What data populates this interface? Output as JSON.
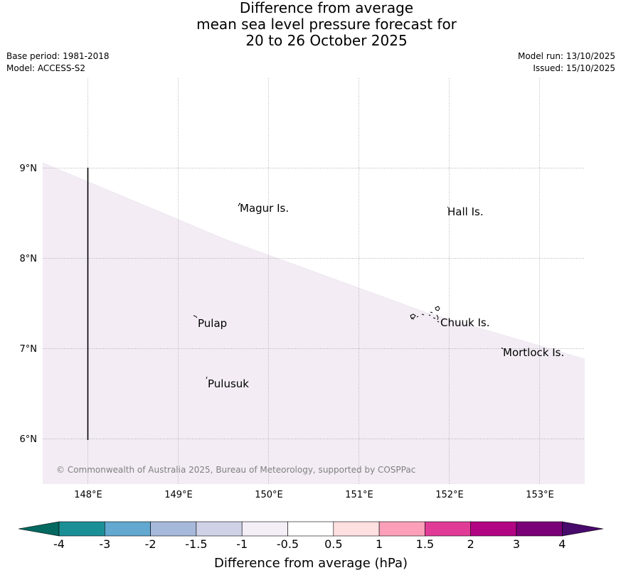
{
  "title": {
    "line1": "Difference from average",
    "line2": "mean sea level pressure forecast for",
    "line3": "20 to 26 October 2025"
  },
  "meta": {
    "base_period": "Base period: 1981-2018",
    "model": "Model: ACCESS-S2",
    "model_run": "Model run: 13/10/2025",
    "issued": "Issued: 15/10/2025"
  },
  "map": {
    "lon_ticks": [
      "148°E",
      "149°E",
      "150°E",
      "151°E",
      "152°E",
      "153°E"
    ],
    "lat_ticks": [
      "9°N",
      "8°N",
      "7°N",
      "6°N"
    ],
    "places": [
      {
        "name": "Magur Is.",
        "lon": 149.67,
        "lat": 8.55
      },
      {
        "name": "Hall Is.",
        "lon": 151.98,
        "lat": 8.52
      },
      {
        "name": "Pulap",
        "lon": 149.18,
        "lat": 7.33
      },
      {
        "name": "Chuuk Is.",
        "lon": 151.85,
        "lat": 7.4
      },
      {
        "name": "Mortlock Is.",
        "lon": 152.58,
        "lat": 6.98
      },
      {
        "name": "Pulusuk",
        "lon": 149.3,
        "lat": 6.67
      }
    ],
    "field_category": "-1 to -0.5",
    "field_color": "#f3ecf5",
    "credit": "© Commonwealth of Australia 2025, Bureau of Meteorology, supported by COSPPac"
  },
  "colorbar": {
    "label": "Difference from average (hPa)",
    "ticks": [
      "-4",
      "-3",
      "-2",
      "-1.5",
      "-1",
      "-0.5",
      "0.5",
      "1",
      "1.5",
      "2",
      "3",
      "4"
    ],
    "under_color": "#03685f",
    "over_color": "#480a6b",
    "colors": [
      "#1b8f96",
      "#62a8d0",
      "#a6b9db",
      "#cfd2e7",
      "#f4eef7",
      "#ffffff",
      "#ffe0e1",
      "#fba0b8",
      "#e03c97",
      "#b10583",
      "#7a0178"
    ]
  }
}
